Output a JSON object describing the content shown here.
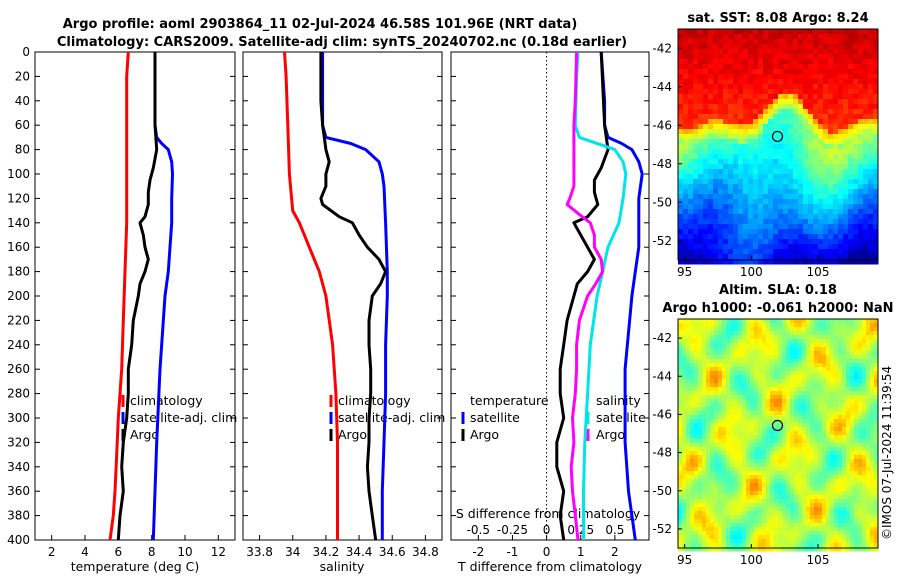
{
  "header": {
    "title_line1": "Argo profile: aoml 2903864_11 02-Jul-2024 46.58S 101.96E (NRT data)",
    "title_line2": "Climatology: CARS2009. Satellite-adj clim: synTS_20240702.nc (0.18d earlier)"
  },
  "colors": {
    "climatology": "#ff0000",
    "satellite": "#0000ff",
    "argo": "#000000",
    "sal_diff": "#ff00ff",
    "sat_sal_diff": "#00e5e5"
  },
  "chart_data": [
    {
      "type": "line",
      "title": "",
      "xlabel": "temperature (deg C)",
      "ylabel": "",
      "xlim": [
        1,
        13
      ],
      "ylim": [
        400,
        0
      ],
      "xticks": [
        "2",
        "4",
        "6",
        "8",
        "10",
        "12"
      ],
      "xtick_values": [
        2,
        4,
        6,
        8,
        10,
        12
      ],
      "yticks": [
        "0",
        "20",
        "40",
        "60",
        "80",
        "100",
        "120",
        "140",
        "160",
        "180",
        "200",
        "220",
        "240",
        "260",
        "280",
        "300",
        "320",
        "340",
        "360",
        "380",
        "400"
      ],
      "ytick_values": [
        0,
        20,
        40,
        60,
        80,
        100,
        120,
        140,
        160,
        180,
        200,
        220,
        240,
        260,
        280,
        300,
        320,
        340,
        360,
        380,
        400
      ],
      "legend": [
        "climatology",
        "satellite-adj. clim",
        "Argo"
      ],
      "series": [
        {
          "name": "climatology",
          "color": "#ff0000",
          "depth": [
            0,
            20,
            60,
            100,
            140,
            180,
            220,
            260,
            300,
            330,
            360,
            380,
            400
          ],
          "values": [
            6.6,
            6.5,
            6.5,
            6.5,
            6.5,
            6.4,
            6.3,
            6.2,
            6.0,
            5.9,
            5.8,
            5.7,
            5.5
          ]
        },
        {
          "name": "satellite-adj. clim",
          "color": "#0000ff",
          "depth": [
            0,
            40,
            60,
            70,
            75,
            80,
            90,
            100,
            120,
            140,
            160,
            180,
            200,
            260,
            320,
            360,
            400
          ],
          "values": [
            8.2,
            8.2,
            8.2,
            8.3,
            8.6,
            9.0,
            9.2,
            9.25,
            9.2,
            9.2,
            9.1,
            9.0,
            8.8,
            8.5,
            8.3,
            8.2,
            8.1
          ]
        },
        {
          "name": "Argo",
          "color": "#000000",
          "depth": [
            0,
            60,
            80,
            95,
            105,
            115,
            125,
            135,
            140,
            150,
            160,
            170,
            180,
            190,
            200,
            220,
            240,
            260,
            280,
            300,
            320,
            340,
            360,
            380,
            400
          ],
          "values": [
            8.2,
            8.2,
            8.3,
            8.1,
            7.9,
            7.8,
            7.8,
            7.6,
            7.3,
            7.5,
            7.6,
            7.8,
            7.6,
            7.3,
            7.2,
            6.9,
            6.8,
            6.6,
            6.6,
            6.5,
            6.3,
            6.2,
            6.3,
            6.1,
            6.0
          ]
        }
      ]
    },
    {
      "type": "line",
      "title": "",
      "xlabel": "salinity",
      "ylabel": "",
      "xlim": [
        33.7,
        34.9
      ],
      "ylim": [
        400,
        0
      ],
      "xticks": [
        "33.8",
        "34",
        "34.2",
        "34.4",
        "34.6",
        "34.8"
      ],
      "xtick_values": [
        33.8,
        34.0,
        34.2,
        34.4,
        34.6,
        34.8
      ],
      "legend": [
        "climatology",
        "satellite-adj. clim",
        "Argo"
      ],
      "series": [
        {
          "name": "climatology",
          "color": "#ff0000",
          "depth": [
            0,
            20,
            60,
            100,
            130,
            140,
            160,
            180,
            200,
            240,
            280,
            320,
            360,
            400
          ],
          "values": [
            33.95,
            33.96,
            33.97,
            33.98,
            34.0,
            34.04,
            34.1,
            34.16,
            34.2,
            34.24,
            34.26,
            34.27,
            34.27,
            34.27
          ]
        },
        {
          "name": "satellite-adj. clim",
          "color": "#0000ff",
          "depth": [
            0,
            20,
            60,
            70,
            75,
            80,
            90,
            100,
            110,
            140,
            180,
            200,
            240,
            280,
            320,
            360,
            400
          ],
          "values": [
            34.18,
            34.18,
            34.18,
            34.2,
            34.35,
            34.44,
            34.52,
            34.54,
            34.55,
            34.56,
            34.57,
            34.57,
            34.56,
            34.56,
            34.55,
            34.54,
            34.54
          ]
        },
        {
          "name": "Argo",
          "color": "#000000",
          "depth": [
            0,
            20,
            40,
            60,
            70,
            80,
            90,
            100,
            110,
            120,
            125,
            135,
            140,
            150,
            160,
            170,
            180,
            190,
            200,
            220,
            240,
            260,
            280,
            300,
            320,
            340,
            360,
            380,
            400
          ],
          "values": [
            34.17,
            34.17,
            34.17,
            34.18,
            34.19,
            34.2,
            34.22,
            34.2,
            34.2,
            34.17,
            34.18,
            34.28,
            34.36,
            34.4,
            34.45,
            34.52,
            34.56,
            34.53,
            34.48,
            34.46,
            34.46,
            34.47,
            34.47,
            34.46,
            34.46,
            34.45,
            34.46,
            34.48,
            34.5
          ]
        }
      ]
    },
    {
      "type": "line",
      "title": "",
      "xlabel": "T difference from climatology",
      "x2label": "S difference from climatology",
      "ylabel": "",
      "xlim": [
        -2.8,
        3.0
      ],
      "ylim": [
        400,
        0
      ],
      "xticks": [
        "-2",
        "-1",
        "0",
        "1",
        "2"
      ],
      "xtick_values": [
        -2,
        -1,
        0,
        1,
        2
      ],
      "x2ticks": [
        "-0.5",
        "-0.25",
        "0",
        "0.25",
        "0.5"
      ],
      "x2tick_values": [
        -0.5,
        -0.25,
        0,
        0.25,
        0.5
      ],
      "legend_left": {
        "title": "temperature",
        "entries": [
          "satellite",
          "Argo"
        ]
      },
      "legend_right": {
        "title": "salinity",
        "entries": [
          "satellite",
          "Argo"
        ]
      },
      "series": [
        {
          "name": "T satellite",
          "color": "#0000ff",
          "depth": [
            0,
            40,
            60,
            70,
            75,
            80,
            90,
            100,
            120,
            140,
            160,
            180,
            200,
            260,
            320,
            360,
            400
          ],
          "values": [
            1.6,
            1.7,
            1.7,
            1.8,
            2.2,
            2.5,
            2.7,
            2.8,
            2.7,
            2.7,
            2.7,
            2.6,
            2.5,
            2.3,
            2.3,
            2.4,
            2.6
          ]
        },
        {
          "name": "T Argo",
          "color": "#000000",
          "depth": [
            0,
            60,
            80,
            95,
            105,
            115,
            125,
            135,
            140,
            150,
            160,
            170,
            180,
            190,
            200,
            220,
            240,
            260,
            280,
            300,
            320,
            340,
            360,
            380,
            400
          ],
          "values": [
            1.6,
            1.7,
            1.8,
            1.6,
            1.4,
            1.4,
            1.5,
            1.2,
            0.8,
            1.0,
            1.2,
            1.4,
            1.2,
            0.9,
            0.8,
            0.6,
            0.5,
            0.4,
            0.4,
            0.5,
            0.3,
            0.3,
            0.5,
            0.4,
            0.5
          ]
        },
        {
          "name": "S satellite",
          "color": "#00e5e5",
          "depth": [
            0,
            20,
            60,
            70,
            80,
            90,
            100,
            120,
            140,
            160,
            180,
            200,
            240,
            280,
            320,
            360,
            400
          ],
          "values": [
            0.23,
            0.22,
            0.21,
            0.24,
            0.5,
            0.56,
            0.58,
            0.56,
            0.53,
            0.45,
            0.41,
            0.37,
            0.32,
            0.3,
            0.28,
            0.27,
            0.27
          ]
        },
        {
          "name": "S Argo",
          "color": "#ff00ff",
          "depth": [
            0,
            40,
            60,
            80,
            90,
            100,
            110,
            120,
            125,
            135,
            140,
            150,
            160,
            170,
            180,
            190,
            200,
            220,
            240,
            260,
            280,
            300,
            320,
            340,
            360,
            380,
            400
          ],
          "values": [
            0.22,
            0.21,
            0.2,
            0.2,
            0.2,
            0.2,
            0.2,
            0.17,
            0.15,
            0.26,
            0.32,
            0.35,
            0.35,
            0.4,
            0.41,
            0.36,
            0.3,
            0.24,
            0.22,
            0.22,
            0.21,
            0.19,
            0.2,
            0.18,
            0.19,
            0.21,
            0.23
          ]
        }
      ]
    },
    {
      "type": "heatmap",
      "title": "sat. SST: 8.08 Argo: 8.24",
      "xlabel": "",
      "ylabel": "",
      "xlim": [
        94.5,
        109.5
      ],
      "ylim": [
        -53,
        -41
      ],
      "xticks": [
        "95",
        "100",
        "105"
      ],
      "xtick_values": [
        95,
        100,
        105
      ],
      "yticks": [
        "-42",
        "-44",
        "-46",
        "-48",
        "-50",
        "-52"
      ],
      "ytick_values": [
        -42,
        -44,
        -46,
        -48,
        -50,
        -52
      ],
      "marker": {
        "lon": 101.96,
        "lat": -46.58
      }
    },
    {
      "type": "heatmap",
      "title": "Altim. SLA: 0.18",
      "subtitle": "Argo h1000: -0.061 h2000: NaN",
      "xlabel": "",
      "ylabel": "",
      "xlim": [
        94.5,
        109.5
      ],
      "ylim": [
        -53,
        -41
      ],
      "xticks": [
        "95",
        "100",
        "105"
      ],
      "xtick_values": [
        95,
        100,
        105
      ],
      "yticks": [
        "-42",
        "-44",
        "-46",
        "-48",
        "-50",
        "-52"
      ],
      "ytick_values": [
        -42,
        -44,
        -46,
        -48,
        -50,
        -52
      ],
      "marker": {
        "lon": 101.96,
        "lat": -46.58
      }
    }
  ],
  "watermark": "©IMOS 07-Jul-2024 11:39:54"
}
